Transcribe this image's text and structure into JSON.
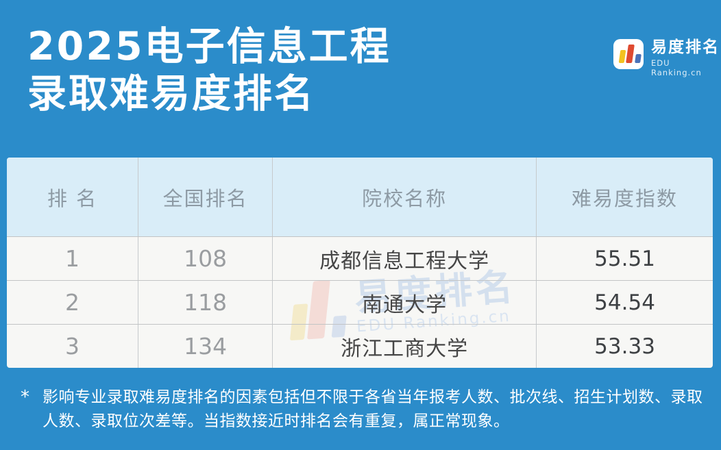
{
  "header": {
    "title_line1": "2025电子信息工程",
    "title_line2": "录取难易度排名",
    "brand_name": "易度排名",
    "brand_subtitle": "EDU Ranking.cn"
  },
  "table": {
    "columns": [
      "排 名",
      "全国排名",
      "院校名称",
      "难易度指数"
    ],
    "rows": [
      {
        "rank": "1",
        "national_rank": "108",
        "school": "成都信息工程大学",
        "index": "55.51"
      },
      {
        "rank": "2",
        "national_rank": "118",
        "school": "南通大学",
        "index": "54.54"
      },
      {
        "rank": "3",
        "national_rank": "134",
        "school": "浙江工商大学",
        "index": "53.33"
      }
    ]
  },
  "watermark": {
    "name": "易度排名",
    "subtitle": "EDU Ranking.cn"
  },
  "footnote": {
    "marker": "*",
    "text": "影响专业录取难易度排名的因素包括但不限于各省当年报考人数、批次线、招生计划数、录取人数、录取位次差等。当指数接近时排名会有重复，属正常现象。"
  },
  "colors": {
    "background": "#2b8cca",
    "table_header_bg": "#d9edf8",
    "table_row_bg": "#f7f7f5",
    "header_text": "#8d9aa4",
    "rank_text": "#9a9da0",
    "school_text": "#464646",
    "logo_yellow": "#f3c21f",
    "logo_red": "#df4a30",
    "logo_blue": "#4a72b8"
  },
  "chart_data": {
    "type": "table",
    "title": "2025电子信息工程录取难易度排名",
    "columns": [
      "排 名",
      "全国排名",
      "院校名称",
      "难易度指数"
    ],
    "rows": [
      [
        "1",
        "108",
        "成都信息工程大学",
        "55.51"
      ],
      [
        "2",
        "118",
        "南通大学",
        "54.54"
      ],
      [
        "3",
        "134",
        "浙江工商大学",
        "53.33"
      ]
    ]
  }
}
